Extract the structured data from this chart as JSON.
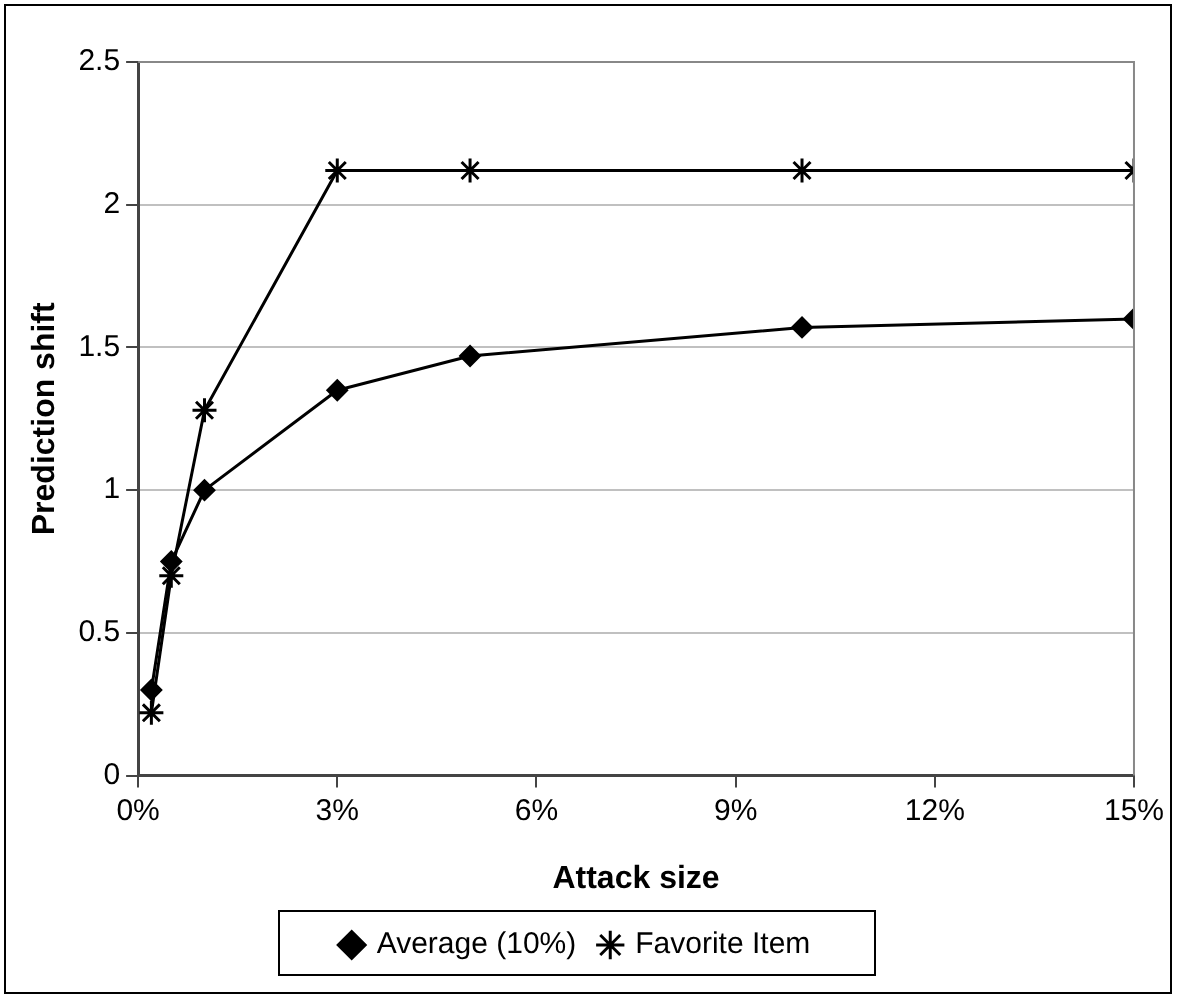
{
  "chart_data": {
    "type": "line",
    "xlabel": "Attack size",
    "ylabel": "Prediction shift",
    "series": [
      {
        "name": "Average (10%)",
        "color": "#000000",
        "marker": "diamond",
        "x": [
          0.2,
          0.5,
          1,
          3,
          5,
          10,
          15
        ],
        "values": [
          0.3,
          0.75,
          1.0,
          1.35,
          1.47,
          1.57,
          1.6
        ]
      },
      {
        "name": "Favorite Item",
        "color": "#000000",
        "marker": "cross",
        "x": [
          0.2,
          0.5,
          1,
          3,
          5,
          10,
          15
        ],
        "values": [
          0.22,
          0.7,
          1.28,
          2.12,
          2.12,
          2.12,
          2.12
        ]
      }
    ],
    "xlim": [
      0,
      15
    ],
    "xticks": [
      {
        "value": 0,
        "label": "0%"
      },
      {
        "value": 3,
        "label": "3%"
      },
      {
        "value": 6,
        "label": "6%"
      },
      {
        "value": 9,
        "label": "9%"
      },
      {
        "value": 12,
        "label": "12%"
      },
      {
        "value": 15,
        "label": "15%"
      }
    ],
    "ylim": [
      0,
      2.5
    ],
    "yticks": [
      0,
      0.5,
      1,
      1.5,
      2,
      2.5
    ],
    "grid": "y",
    "legend": "bottom",
    "line_style": "solid"
  }
}
